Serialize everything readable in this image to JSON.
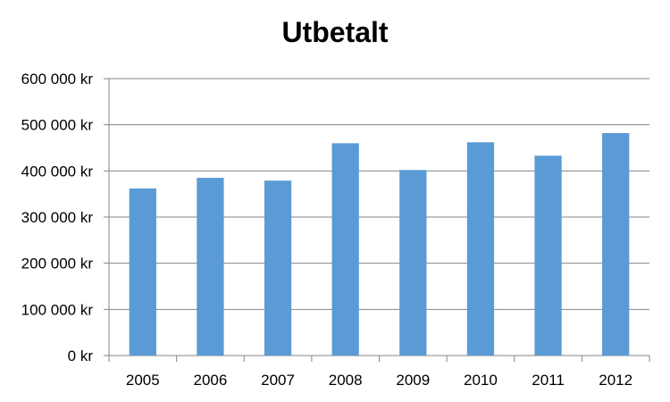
{
  "chart_data": {
    "type": "bar",
    "title": "Utbetalt",
    "xlabel": "",
    "ylabel": "",
    "categories": [
      "2005",
      "2006",
      "2007",
      "2008",
      "2009",
      "2010",
      "2011",
      "2012"
    ],
    "values": [
      362000,
      385000,
      379000,
      460000,
      402000,
      462000,
      433000,
      482000
    ],
    "ylim": [
      0,
      600000
    ],
    "yticks": [
      0,
      100000,
      200000,
      300000,
      400000,
      500000,
      600000
    ],
    "ytick_labels": [
      "0 kr",
      "100 000 kr",
      "200 000 kr",
      "300 000 kr",
      "400 000 kr",
      "500 000 kr",
      "600 000 kr"
    ],
    "grid": true,
    "legend": "none",
    "colors": {
      "bar": "#5B9BD5",
      "grid": "#868686",
      "axis": "#868686",
      "text": "#000000"
    }
  }
}
